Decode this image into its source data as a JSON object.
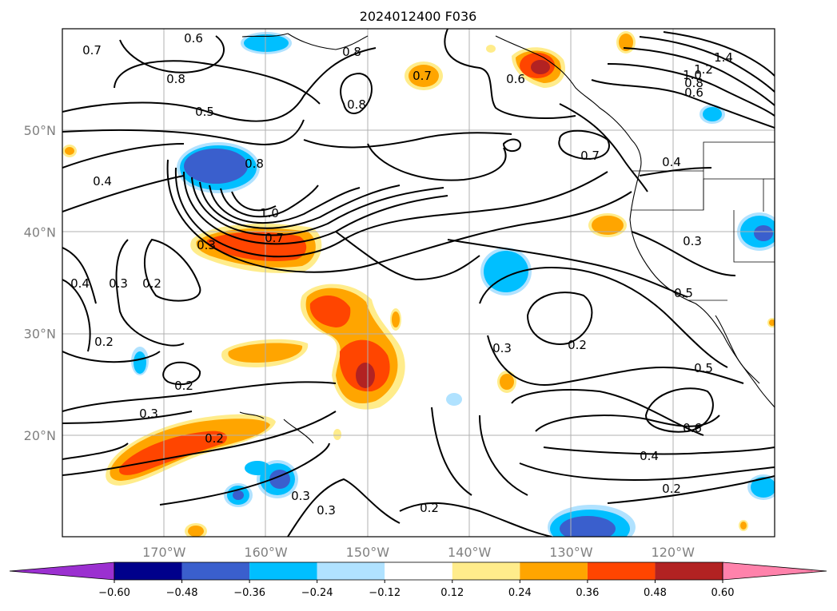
{
  "title": "2024012400 F036",
  "lat_labels": [
    {
      "text": "50°N",
      "lat": 50
    },
    {
      "text": "40°N",
      "lat": 40
    },
    {
      "text": "30°N",
      "lat": 30
    },
    {
      "text": "20°N",
      "lat": 20
    }
  ],
  "lon_labels": [
    {
      "text": "170°W",
      "lon": -170
    },
    {
      "text": "160°W",
      "lon": -160
    },
    {
      "text": "150°W",
      "lon": -150
    },
    {
      "text": "140°W",
      "lon": -140
    },
    {
      "text": "130°W",
      "lon": -130
    },
    {
      "text": "120°W",
      "lon": -120
    }
  ],
  "map_extent": {
    "lon_min": -180,
    "lon_max": -110,
    "lat_min": 10,
    "lat_max": 60
  },
  "colorbar": {
    "labels": [
      "−0.60",
      "−0.48",
      "−0.36",
      "−0.24",
      "−0.12",
      "0.12",
      "0.24",
      "0.36",
      "0.48",
      "0.60"
    ],
    "colors": [
      "#9b30d0",
      "#00008b",
      "#3a5fcd",
      "#00bfff",
      "#b0e2ff",
      "#ffffff",
      "#ffec8b",
      "#ffa500",
      "#ff4500",
      "#b22222",
      "#ff82ab"
    ]
  },
  "contour_labels": [
    "0.7",
    "0.6",
    "0.8",
    "0.8",
    "0.7",
    "0.6",
    "1.4",
    "1.2",
    "1.0",
    "0.8",
    "0.6",
    "0.8",
    "0.5",
    "0.8",
    "0.7",
    "0.4",
    "1.0",
    "0.7",
    "0.3",
    "0.4",
    "0.4",
    "0.3",
    "0.2",
    "0.3",
    "0.5",
    "0.3",
    "0.2",
    "0.2",
    "0.2",
    "0.5",
    "0.3",
    "0.6",
    "0.2",
    "0.4",
    "0.3",
    "0.2",
    "0.2"
  ]
}
